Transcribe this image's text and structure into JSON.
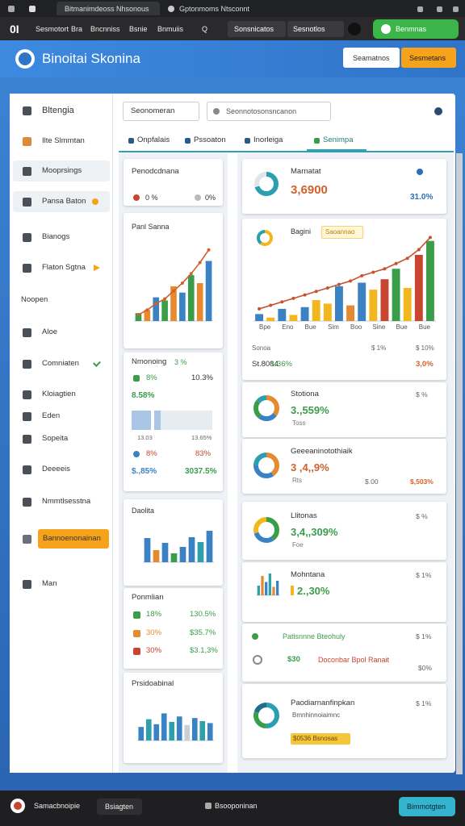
{
  "browser": {
    "tabs": [
      "Bitmanimdeoss Nhsonous",
      "Gptonmoms Ntsconnt"
    ]
  },
  "nav": {
    "logo": "0I",
    "links": [
      "Sesmotort",
      "Bra",
      "Bncnniss",
      "Bsnie",
      "Bnmuiis",
      "Q"
    ],
    "tabs": [
      "Sonsnicatos",
      "Sesnotlos"
    ],
    "button": "Benmnas"
  },
  "header": {
    "title": "Binoitai Skonina",
    "buttons": [
      "Seamatnos",
      "Sesmetans"
    ]
  },
  "sidebar": {
    "items": [
      "Bltengia",
      "Ilte Slmmtan",
      "Mooprsings",
      "Pansa Baton",
      "Bianogs",
      "Flaton Sgtna",
      "Noopen",
      "Aloe",
      "Comniaten",
      "Kloiagtien",
      "Eden",
      "Sopeita",
      "Deeeeis",
      "Nmmtlsesstna",
      "Bannoenonainan",
      "Man"
    ]
  },
  "toolbar": {
    "select": "Seonomeran",
    "search": "Seonnotosonsncanon"
  },
  "tabs": [
    "Onpfalais",
    "Pssoaton",
    "Inorleiga",
    "Senimpa"
  ],
  "left_cards": [
    {
      "title": "Penodcdnana",
      "stats": [
        "0 %",
        "0%"
      ]
    },
    {
      "title": "Panl Sanna",
      "chart": {
        "values": [
          10,
          14,
          30,
          26,
          44,
          36,
          58,
          48,
          76
        ],
        "line": [
          8,
          14,
          22,
          28,
          38,
          48,
          60,
          74,
          90
        ],
        "colors": [
          "#3a9d4a",
          "#e58a2e",
          "#3b82c4"
        ],
        "line_color": "#d0612b"
      }
    },
    {
      "title": "Nmonoing",
      "badge": "3 %",
      "rows": [
        [
          "8%",
          "10.3%"
        ],
        [
          "8.58%"
        ],
        [
          "13.03",
          "13.65%"
        ],
        [
          "8%",
          "83%"
        ],
        [
          "$.,85%",
          "3037.5%"
        ]
      ]
    },
    {
      "title": "Daolita",
      "chart": {
        "values": [
          60,
          30,
          48,
          22,
          38,
          62,
          50,
          78
        ],
        "colors": [
          "#3b82c4",
          "#e58a2e",
          "#3b82c4",
          "#3a9d4a",
          "#3b82c4",
          "#3b82c4",
          "#2ea0a8",
          "#3b82c4"
        ]
      }
    },
    {
      "title": "Ponmlian",
      "rows": [
        [
          "18%",
          "130.5%"
        ],
        [
          "30%",
          "$35.7%"
        ],
        [
          "30%",
          "$3.1,3%"
        ]
      ]
    },
    {
      "title": "Prsidoabinal",
      "chart": {
        "values": [
          35,
          55,
          42,
          70,
          48,
          62,
          40,
          58,
          50,
          45
        ],
        "colors": [
          "#3b82c4",
          "#2ea0a8",
          "#3b82c4",
          "#3b82c4",
          "#2ea0a8",
          "#3b82c4",
          "#c9cfd6"
        ]
      }
    }
  ],
  "right_cards": [
    {
      "title": "Marnatat",
      "value": "3,6900",
      "change": "31.0%",
      "donut": {
        "values": [
          70,
          30
        ],
        "colors": [
          "#2a9fb0",
          "#dfe6ea"
        ]
      }
    },
    {
      "title": "Bagini",
      "badge": "Saoannao",
      "donut": {
        "values": [
          60,
          40
        ],
        "colors": [
          "#f2b71f",
          "#2a9fb0"
        ]
      },
      "chart": {
        "values": [
          8,
          4,
          14,
          7,
          16,
          24,
          20,
          40,
          18,
          44,
          36,
          48,
          60,
          38,
          76,
          92
        ],
        "line": [
          14,
          18,
          22,
          26,
          30,
          34,
          38,
          42,
          46,
          52,
          56,
          60,
          66,
          72,
          82,
          96
        ],
        "colors": [
          "#3b82c4",
          "#f2b71f",
          "#3b82c4",
          "#f2b71f",
          "#3b82c4",
          "#f2b71f",
          "#f2b71f",
          "#3b82c4",
          "#e58a2e",
          "#3b82c4",
          "#f2b71f",
          "#c8452f",
          "#3a9d4a",
          "#f2b71f",
          "#c8452f",
          "#3a9d4a"
        ],
        "line_color": "#c8512f",
        "categories": [
          "Bpe",
          "Eno",
          "Bue",
          "Sim",
          "Boo",
          "Sine",
          "Bue",
          "Bue"
        ]
      },
      "footer": [
        [
          "Sonoa",
          "$ 1%",
          "$ 10%"
        ],
        [
          "St.8084",
          "1.36%",
          "3,0%"
        ]
      ]
    },
    {
      "title": "Stotiona",
      "value": "3.,559%",
      "sub": "Toss",
      "change": "$ %",
      "donut": {
        "values": [
          35,
          25,
          25,
          15
        ],
        "colors": [
          "#e58a2e",
          "#3b82c4",
          "#3a9d4a",
          "#2a9fb0"
        ]
      }
    },
    {
      "title": "Geeeaninotothiaik",
      "value": "3 ,4,,9%",
      "sub": "Rts",
      "extra": [
        "$.00",
        "$,503%"
      ],
      "donut": {
        "values": [
          40,
          35,
          25
        ],
        "colors": [
          "#e58a2e",
          "#3b82c4",
          "#2a9fb0"
        ]
      }
    },
    {
      "title": "Llitonas",
      "value": "3,4,,309%",
      "sub": "Foe",
      "change": "$ %",
      "donut": {
        "values": [
          40,
          30,
          30
        ],
        "colors": [
          "#3a9d4a",
          "#3b82c4",
          "#f2b71f"
        ]
      }
    },
    {
      "title": "Mohntana",
      "value": "2.,30%",
      "change": "$ 1%",
      "chart": {
        "values": [
          40,
          80,
          55,
          90,
          35,
          60
        ],
        "colors": [
          "#2ea0a8",
          "#e58a2e",
          "#3b82c4"
        ]
      }
    },
    {
      "title": "Patisnnne Bteohuly",
      "change": "$ 1%",
      "value": "$30",
      "note": "Doconbar Bpol Ranait",
      "extra": "$0%"
    },
    {
      "title": "Paodiarnanfinpkan",
      "sub": "Bmnhinnoiaimnc",
      "badge": "$0536 Bsnosas",
      "change": "$ 1%",
      "donut": {
        "values": [
          50,
          30,
          20
        ],
        "colors": [
          "#2a9fb0",
          "#3a9d4a",
          "#1d6f8c"
        ]
      }
    }
  ],
  "footer": {
    "left": "Samacbnoipie",
    "tab": "Bsiagten",
    "center": "Bsooponinan",
    "button": "Bimmotgten"
  }
}
